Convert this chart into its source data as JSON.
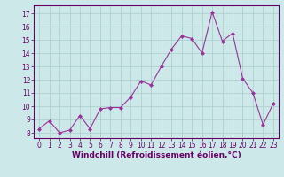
{
  "x": [
    0,
    1,
    2,
    3,
    4,
    5,
    6,
    7,
    8,
    9,
    10,
    11,
    12,
    13,
    14,
    15,
    16,
    17,
    18,
    19,
    20,
    21,
    22,
    23
  ],
  "y": [
    8.3,
    8.9,
    8.0,
    8.2,
    9.3,
    8.3,
    9.8,
    9.9,
    9.9,
    10.7,
    11.9,
    11.6,
    13.0,
    14.3,
    15.3,
    15.1,
    14.0,
    17.1,
    14.9,
    15.5,
    12.1,
    11.0,
    8.6,
    10.2
  ],
  "line_color": "#993399",
  "marker": "D",
  "marker_size": 2.0,
  "bg_color": "#cce8e8",
  "grid_color": "#aacccc",
  "xlabel": "Windchill (Refroidissement éolien,°C)",
  "ylabel_ticks": [
    8,
    9,
    10,
    11,
    12,
    13,
    14,
    15,
    16,
    17
  ],
  "xtick_labels": [
    "0",
    "1",
    "2",
    "3",
    "4",
    "5",
    "6",
    "7",
    "8",
    "9",
    "10",
    "11",
    "12",
    "13",
    "14",
    "15",
    "16",
    "17",
    "18",
    "19",
    "20",
    "21",
    "22",
    "23"
  ],
  "ylim": [
    7.6,
    17.6
  ],
  "xlim": [
    -0.5,
    23.5
  ],
  "axis_color": "#660066",
  "tick_color": "#660066",
  "label_color": "#660066",
  "tick_fontsize": 5.5,
  "xlabel_fontsize": 6.5
}
